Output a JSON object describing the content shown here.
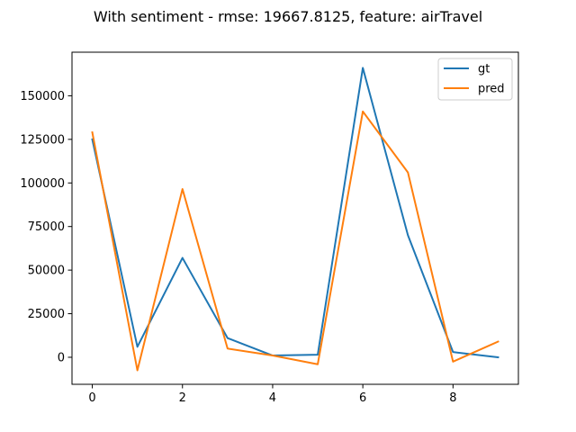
{
  "chart_data": {
    "type": "line",
    "title": "With sentiment - rmse: 19667.8125, feature: airTravel",
    "xlabel": "",
    "ylabel": "",
    "x": [
      0,
      1,
      2,
      3,
      4,
      5,
      6,
      7,
      8,
      9
    ],
    "xlim": [
      -0.45,
      9.45
    ],
    "ylim": [
      -15500,
      175000
    ],
    "xticks": [
      0,
      2,
      4,
      6,
      8
    ],
    "xtick_labels": [
      "0",
      "2",
      "4",
      "6",
      "8"
    ],
    "yticks": [
      0,
      25000,
      50000,
      75000,
      100000,
      125000,
      150000
    ],
    "ytick_labels": [
      "0",
      "25000",
      "50000",
      "75000",
      "100000",
      "125000",
      "150000"
    ],
    "grid": false,
    "legend_position": "top-right",
    "series": [
      {
        "name": "gt",
        "color": "#1f77b4",
        "values": [
          125000,
          6000,
          57000,
          11000,
          1000,
          1500,
          166000,
          70000,
          3000,
          0
        ]
      },
      {
        "name": "pred",
        "color": "#ff7f0e",
        "values": [
          129000,
          -7500,
          96500,
          5000,
          1000,
          -4000,
          141000,
          106000,
          -2500,
          9000
        ]
      }
    ]
  }
}
